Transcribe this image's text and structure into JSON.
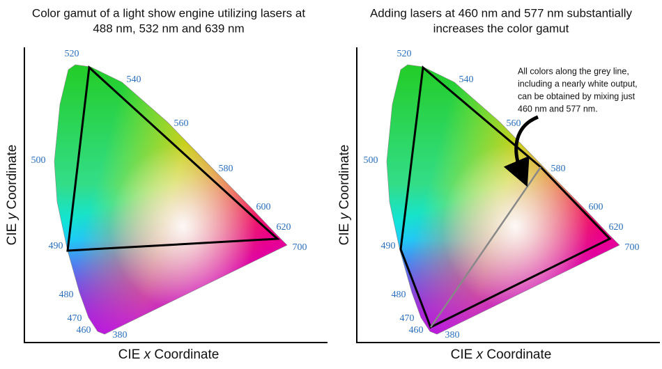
{
  "panels": [
    {
      "title": [
        "Color gamut of a light show engine utilizing lasers at",
        "488 nm, 532 nm and 639 nm"
      ],
      "y_label": {
        "prefix": "CIE ",
        "variable": "y",
        "suffix": " Coordinate"
      },
      "x_label": {
        "prefix": "CIE ",
        "variable": "x",
        "suffix": " Coordinate"
      },
      "wavelength_labels": [
        "520",
        "540",
        "560",
        "580",
        "600",
        "620",
        "700",
        "500",
        "490",
        "480",
        "470",
        "460",
        "380"
      ]
    },
    {
      "title": [
        "Adding lasers at 460 nm and 577 nm substantially",
        "increases the color gamut"
      ],
      "y_label": {
        "prefix": "CIE ",
        "variable": "y",
        "suffix": " Coordinate"
      },
      "x_label": {
        "prefix": "CIE ",
        "variable": "x",
        "suffix": " Coordinate"
      },
      "wavelength_labels": [
        "520",
        "540",
        "560",
        "580",
        "600",
        "620",
        "700",
        "500",
        "490",
        "480",
        "470",
        "460",
        "380"
      ],
      "annotation": [
        "All colors along the grey line,",
        "including a nearly white output,",
        "can be obtained by mixing just",
        "460 nm and 577 nm."
      ]
    }
  ]
}
